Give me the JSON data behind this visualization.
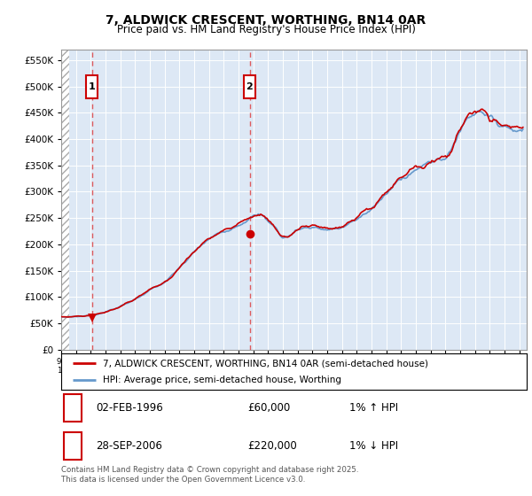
{
  "title": "7, ALDWICK CRESCENT, WORTHING, BN14 0AR",
  "subtitle": "Price paid vs. HM Land Registry's House Price Index (HPI)",
  "legend_line1": "7, ALDWICK CRESCENT, WORTHING, BN14 0AR (semi-detached house)",
  "legend_line2": "HPI: Average price, semi-detached house, Worthing",
  "annotation1_date": "02-FEB-1996",
  "annotation1_price": "£60,000",
  "annotation1_hpi": "1% ↑ HPI",
  "annotation2_date": "28-SEP-2006",
  "annotation2_price": "£220,000",
  "annotation2_hpi": "1% ↓ HPI",
  "footer": "Contains HM Land Registry data © Crown copyright and database right 2025.\nThis data is licensed under the Open Government Licence v3.0.",
  "xmin": 1994.0,
  "xmax": 2025.5,
  "ymin": 0,
  "ymax": 570000,
  "yticks": [
    0,
    50000,
    100000,
    150000,
    200000,
    250000,
    300000,
    350000,
    400000,
    450000,
    500000,
    550000
  ],
  "ytick_labels": [
    "£0",
    "£50K",
    "£100K",
    "£150K",
    "£200K",
    "£250K",
    "£300K",
    "£350K",
    "£400K",
    "£450K",
    "£500K",
    "£550K"
  ],
  "hpi_color": "#6699cc",
  "price_color": "#cc0000",
  "dashed_vline_color": "#dd4444",
  "annotation_box_color": "#cc0000",
  "bg_color": "#dde8f5",
  "sale1_x": 1996.08,
  "sale1_y": 60000,
  "sale2_x": 2006.75,
  "sale2_y": 220000
}
